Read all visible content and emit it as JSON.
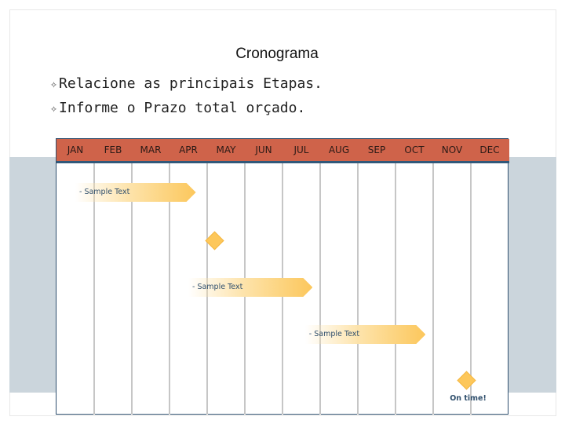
{
  "slide": {
    "title": "Cronograma",
    "bullets": [
      "Relacione as principais Etapas.",
      "Informe o Prazo total orçado."
    ],
    "bullet_glyph": "✧"
  },
  "timeline": {
    "months": [
      "JAN",
      "FEB",
      "MAR",
      "APR",
      "MAY",
      "JUN",
      "JUL",
      "AUG",
      "SEP",
      "OCT",
      "NOV",
      "DEC"
    ],
    "tasks": [
      {
        "label": "- Sample Text",
        "start_month": 1.0,
        "end_month": 3.7
      },
      {
        "label": "- Sample Text",
        "start_month": 4.0,
        "end_month": 6.8
      },
      {
        "label": "- Sample Text",
        "start_month": 7.1,
        "end_month": 9.8
      }
    ],
    "milestones": [
      {
        "label": "",
        "month": 4.2
      },
      {
        "label": "On time!",
        "month": 10.9
      }
    ]
  },
  "colors": {
    "header": "#cf634a",
    "header_rule": "#31587a",
    "bar": "#fcc75c",
    "milestone": "#fdc75a",
    "band": "#cbd5dc"
  }
}
